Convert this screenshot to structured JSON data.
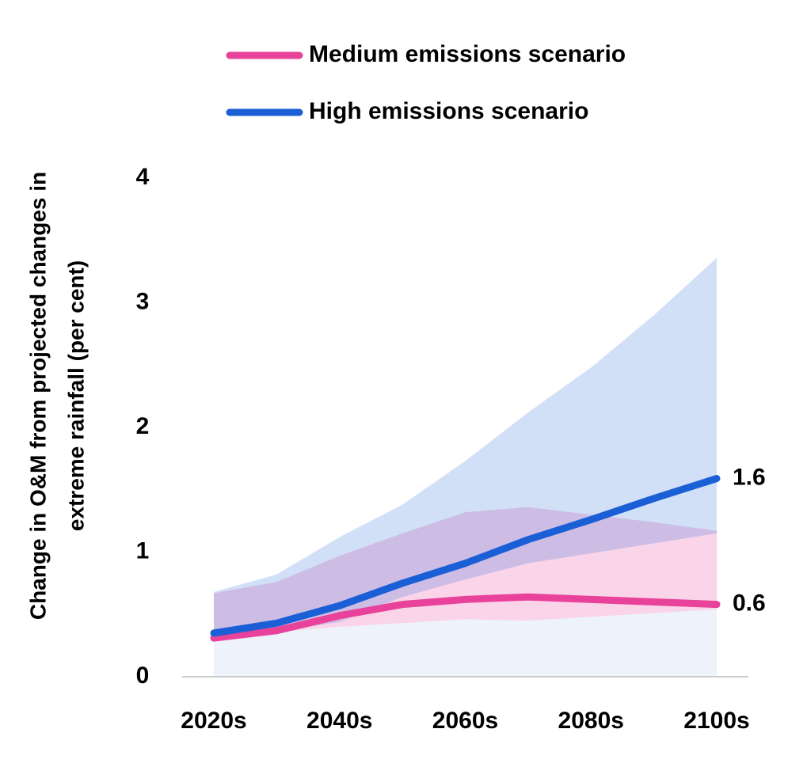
{
  "chart_data": {
    "type": "line",
    "ylabel": [
      "Change in O&M from projected changes in",
      "extreme rainfall (per cent)"
    ],
    "categories": [
      "2020s",
      null,
      "2040s",
      null,
      "2060s",
      null,
      "2080s",
      null,
      "2100s"
    ],
    "ylim": [
      0,
      4
    ],
    "yticks": [
      0,
      1,
      2,
      3,
      4
    ],
    "legend": "top",
    "series": [
      {
        "name": "Medium emissions scenario",
        "color": "#e8429a",
        "values": [
          0.31,
          0.37,
          0.49,
          0.58,
          0.62,
          0.64,
          0.62,
          0.6,
          0.58
        ],
        "value_labels": [
          null,
          null,
          null,
          null,
          null,
          null,
          null,
          null,
          "0.6"
        ],
        "band_lower": [
          0.3,
          0.36,
          0.4,
          0.43,
          0.46,
          0.45,
          0.48,
          0.51,
          0.54
        ],
        "band_upper": [
          0.67,
          0.76,
          0.97,
          1.15,
          1.32,
          1.36,
          1.3,
          1.24,
          1.17
        ]
      },
      {
        "name": "High emissions scenario",
        "color": "#1a5fd6",
        "values": [
          0.35,
          0.43,
          0.57,
          0.75,
          0.91,
          1.1,
          1.26,
          1.43,
          1.59
        ],
        "value_labels": [
          null,
          null,
          null,
          null,
          null,
          null,
          null,
          null,
          "1.6"
        ],
        "band_lower": [
          0.3,
          0.36,
          0.44,
          0.64,
          0.78,
          0.91,
          0.99,
          1.07,
          1.15
        ],
        "band_upper": [
          0.68,
          0.82,
          1.12,
          1.38,
          1.73,
          2.12,
          2.48,
          2.9,
          3.36
        ]
      }
    ]
  }
}
